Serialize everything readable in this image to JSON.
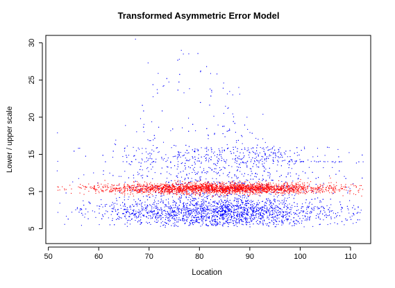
{
  "chart_data": {
    "type": "scatter",
    "title": "Transformed  Asymmetric  Error  Model",
    "xlabel": "Location",
    "ylabel": "Lower / upper  scale",
    "xlim": [
      49.5,
      114
    ],
    "ylim": [
      3.0,
      31.0
    ],
    "x_ticks": [
      50,
      60,
      70,
      80,
      90,
      100,
      110
    ],
    "x_tick_labels": [
      "50",
      "60",
      "70",
      "80",
      "90",
      "100",
      "110"
    ],
    "y_ticks": [
      5,
      10,
      15,
      20,
      25,
      30
    ],
    "y_tick_labels": [
      "5",
      "10",
      "15",
      "20",
      "25",
      "30"
    ],
    "grid": false,
    "colors": {
      "series_blue": "#0000ff",
      "series_red": "#ff0000",
      "axis": "#000000"
    },
    "series": [
      {
        "color": "#0000ff",
        "marker": "dot",
        "approx_points": 4200,
        "description": "x spread 51.5-112.5 (density peak ~80-95); y mostly 5-16, dense band 5.5-9, sparse tail up to ~30.5 near x 65-85",
        "points": [
          [
            67.3,
            30.5
          ],
          [
            76.4,
            29.0
          ],
          [
            76.8,
            28.5
          ],
          [
            69.8,
            27.3
          ],
          [
            76.0,
            27.8
          ],
          [
            71.8,
            25.9
          ],
          [
            80.2,
            26.1
          ],
          [
            87.8,
            24.0
          ],
          [
            82.1,
            23.8
          ],
          [
            88.0,
            23.1
          ],
          [
            86.6,
            23.0
          ],
          [
            92.6,
            20.4
          ],
          [
            51.8,
            17.9
          ],
          [
            93.4,
            14.7
          ],
          [
            100.0,
            14.0
          ],
          [
            105.8,
            12.1
          ],
          [
            112.1,
            7.5
          ],
          [
            111.8,
            6.2
          ],
          [
            51.9,
            7.2
          ],
          [
            102.5,
            5.3
          ]
        ]
      },
      {
        "color": "#ff0000",
        "marker": "dot",
        "approx_points": 2600,
        "description": "x spread 51.5-112.5; y in a tight band centred ~10.4 (9.5-11.3), thinning toward the ends",
        "points": [
          [
            52.0,
            10.6
          ],
          [
            60.5,
            11.0
          ],
          [
            70.0,
            10.5
          ],
          [
            80.0,
            10.5
          ],
          [
            90.0,
            10.4
          ],
          [
            100.0,
            10.2
          ],
          [
            105.0,
            10.3
          ],
          [
            112.2,
            9.4
          ],
          [
            111.5,
            10.1
          ],
          [
            109.0,
            10.6
          ]
        ]
      }
    ]
  }
}
